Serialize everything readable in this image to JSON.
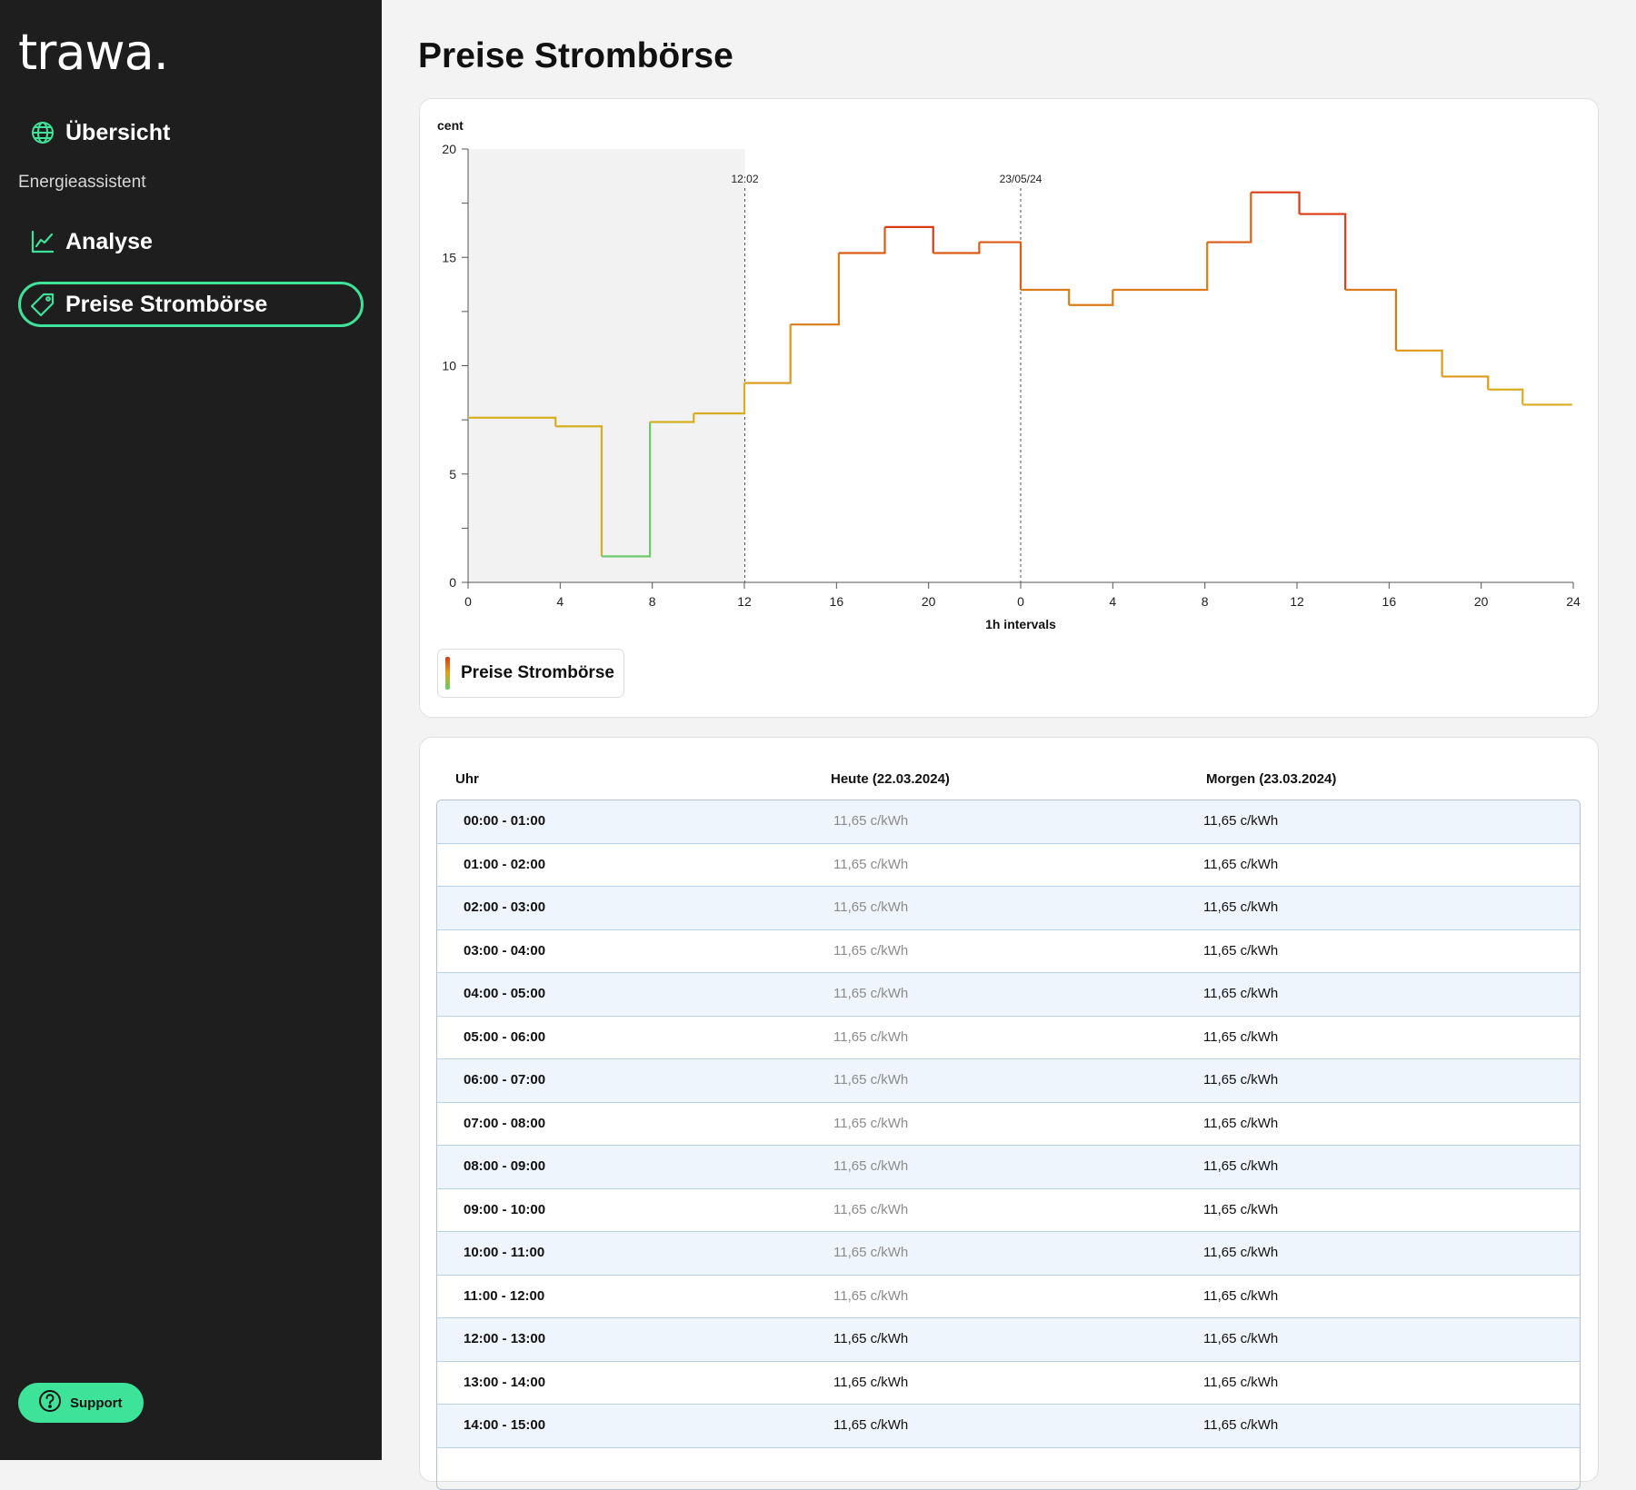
{
  "app": {
    "logo": "trawa."
  },
  "sidebar": {
    "items": [
      {
        "label": "Übersicht",
        "icon": "globe-icon"
      },
      {
        "label": "Analyse",
        "icon": "chart-line-icon"
      },
      {
        "label": "Preise Strombörse",
        "icon": "price-tag-icon",
        "active": true
      }
    ],
    "section_label": "Energieassistent",
    "support_label": "Support"
  },
  "page": {
    "title": "Preise Strombörse"
  },
  "colors": {
    "accent": "#3ee39a",
    "sidebar_bg": "#1e1e1e",
    "low": "#5fd06a",
    "mid": "#d9a51d",
    "high": "#d93a16"
  },
  "chart_data": {
    "type": "line",
    "step": true,
    "ylabel": "cent",
    "xlabel": "1h intervals",
    "ylim": [
      0,
      20
    ],
    "yticks": [
      0,
      5,
      10,
      15,
      20
    ],
    "xlim": [
      0,
      48
    ],
    "xtick_positions": [
      0,
      4,
      8,
      12,
      16,
      20,
      24,
      28,
      32,
      36,
      40,
      44,
      48
    ],
    "xtick_labels": [
      "0",
      "4",
      "8",
      "12",
      "16",
      "20",
      "0",
      "4",
      "8",
      "12",
      "16",
      "20",
      "24"
    ],
    "markers": [
      {
        "x": 12.02,
        "label": "12:02"
      },
      {
        "x": 24,
        "label": "23/05/24"
      }
    ],
    "past_region": [
      0,
      12.02
    ],
    "legend": "Preise Strombörse",
    "legend_position": "bottom-left",
    "series": [
      {
        "name": "Preise Strombörse",
        "points": [
          [
            0,
            7.6
          ],
          [
            3.8,
            7.2
          ],
          [
            5.8,
            1.2
          ],
          [
            7.9,
            7.4
          ],
          [
            9.8,
            7.8
          ],
          [
            12.0,
            9.2
          ],
          [
            14.0,
            11.9
          ],
          [
            16.1,
            15.2
          ],
          [
            18.1,
            16.4
          ],
          [
            20.2,
            15.2
          ],
          [
            22.2,
            15.7
          ],
          [
            24.0,
            13.5
          ],
          [
            26.1,
            12.8
          ],
          [
            28.0,
            13.5
          ],
          [
            32.1,
            15.7
          ],
          [
            34.0,
            18.0
          ],
          [
            36.1,
            17.0
          ],
          [
            38.1,
            13.5
          ],
          [
            40.3,
            10.7
          ],
          [
            42.3,
            9.5
          ],
          [
            44.3,
            8.9
          ],
          [
            45.8,
            8.2
          ],
          [
            47.8,
            8.2
          ]
        ]
      }
    ]
  },
  "table": {
    "headers": [
      "Uhr",
      "Heute (22.03.2024)",
      "Morgen (23.03.2024)"
    ],
    "rows": [
      {
        "time": "00:00 - 01:00",
        "today": "11,65 c/kWh",
        "tomorrow": "11,65 c/kWh",
        "past": true
      },
      {
        "time": "01:00 - 02:00",
        "today": "11,65 c/kWh",
        "tomorrow": "11,65 c/kWh",
        "past": true
      },
      {
        "time": "02:00 - 03:00",
        "today": "11,65 c/kWh",
        "tomorrow": "11,65 c/kWh",
        "past": true
      },
      {
        "time": "03:00 - 04:00",
        "today": "11,65 c/kWh",
        "tomorrow": "11,65 c/kWh",
        "past": true
      },
      {
        "time": "04:00 - 05:00",
        "today": "11,65 c/kWh",
        "tomorrow": "11,65 c/kWh",
        "past": true
      },
      {
        "time": "05:00 - 06:00",
        "today": "11,65 c/kWh",
        "tomorrow": "11,65 c/kWh",
        "past": true
      },
      {
        "time": "06:00 - 07:00",
        "today": "11,65 c/kWh",
        "tomorrow": "11,65 c/kWh",
        "past": true
      },
      {
        "time": "07:00 - 08:00",
        "today": "11,65 c/kWh",
        "tomorrow": "11,65 c/kWh",
        "past": true
      },
      {
        "time": "08:00 - 09:00",
        "today": "11,65 c/kWh",
        "tomorrow": "11,65 c/kWh",
        "past": true
      },
      {
        "time": "09:00 - 10:00",
        "today": "11,65 c/kWh",
        "tomorrow": "11,65 c/kWh",
        "past": true
      },
      {
        "time": "10:00 - 11:00",
        "today": "11,65 c/kWh",
        "tomorrow": "11,65 c/kWh",
        "past": true
      },
      {
        "time": "11:00 - 12:00",
        "today": "11,65 c/kWh",
        "tomorrow": "11,65 c/kWh",
        "past": true
      },
      {
        "time": "12:00 - 13:00",
        "today": "11,65 c/kWh",
        "tomorrow": "11,65 c/kWh",
        "past": false
      },
      {
        "time": "13:00 - 14:00",
        "today": "11,65 c/kWh",
        "tomorrow": "11,65 c/kWh",
        "past": false
      },
      {
        "time": "14:00 - 15:00",
        "today": "11,65 c/kWh",
        "tomorrow": "11,65 c/kWh",
        "past": false
      }
    ]
  }
}
